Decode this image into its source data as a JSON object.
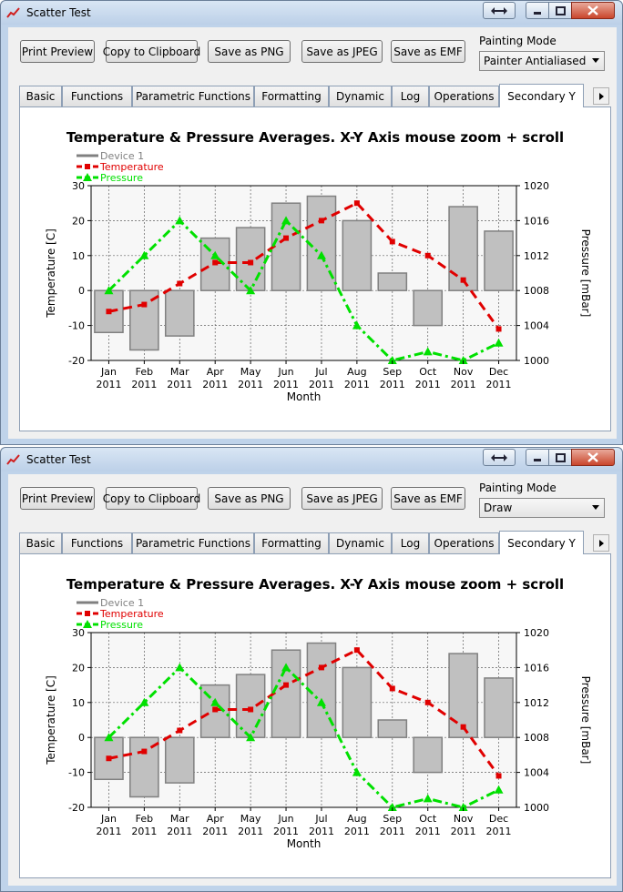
{
  "windows": [
    {
      "title": "Scatter Test",
      "toolbar": {
        "print_preview": "Print Preview",
        "copy_clipboard": "Copy to Clipboard",
        "save_png": "Save as PNG",
        "save_jpeg": "Save as JPEG",
        "save_emf": "Save as EMF"
      },
      "painting_mode_label": "Painting Mode",
      "painting_mode_value": "Painter Antialiased",
      "tabs": [
        "Basic",
        "Functions",
        "Parametric Functions",
        "Formatting",
        "Dynamic",
        "Log",
        "Operations",
        "Secondary Y"
      ],
      "active_tab": "Secondary Y"
    },
    {
      "title": "Scatter Test",
      "toolbar": {
        "print_preview": "Print Preview",
        "copy_clipboard": "Copy to Clipboard",
        "save_png": "Save as PNG",
        "save_jpeg": "Save as JPEG",
        "save_emf": "Save as EMF"
      },
      "painting_mode_label": "Painting Mode",
      "painting_mode_value": "Draw",
      "tabs": [
        "Basic",
        "Functions",
        "Parametric Functions",
        "Formatting",
        "Dynamic",
        "Log",
        "Operations",
        "Secondary Y"
      ],
      "active_tab": "Secondary Y"
    }
  ],
  "chart_data": {
    "type": "bar",
    "title": "Temperature & Pressure Averages. X-Y Axis mouse zoom + scroll",
    "xlabel": "Month",
    "ylabel": "Temperature [C]",
    "y2label": "Pressure [mBar]",
    "categories": [
      "Jan\n2011",
      "Feb\n2011",
      "Mar\n2011",
      "Apr\n2011",
      "May\n2011",
      "Jun\n2011",
      "Jul\n2011",
      "Aug\n2011",
      "Sep\n2011",
      "Oct\n2011",
      "Nov\n2011",
      "Dec\n2011"
    ],
    "ylim": [
      -20,
      30
    ],
    "yticks": [
      "30",
      "20",
      "10",
      "0",
      "-10",
      "-20"
    ],
    "y2lim": [
      1000,
      1020
    ],
    "y2ticks": [
      "1020",
      "1016",
      "1012",
      "1008",
      "1004",
      "1000"
    ],
    "grid": true,
    "legend_position": "top-left",
    "series": [
      {
        "name": "Device 1",
        "type": "bar",
        "axis": "left",
        "color": "#808080",
        "fill": "#c0c0c0",
        "values": [
          -12,
          -17,
          -13,
          15,
          18,
          25,
          27,
          20,
          5,
          -10,
          24,
          17
        ]
      },
      {
        "name": "Temperature",
        "type": "line",
        "axis": "left",
        "color": "#e00000",
        "values": [
          -6,
          -4,
          2,
          8,
          8,
          15,
          20,
          25,
          14,
          10,
          3,
          -11
        ]
      },
      {
        "name": "Pressure",
        "type": "line",
        "axis": "right",
        "color": "#00e000",
        "values": [
          1008,
          1012,
          1016,
          1012,
          1008,
          1016,
          1012,
          1004,
          1000,
          1001,
          1000,
          1002
        ]
      }
    ]
  }
}
